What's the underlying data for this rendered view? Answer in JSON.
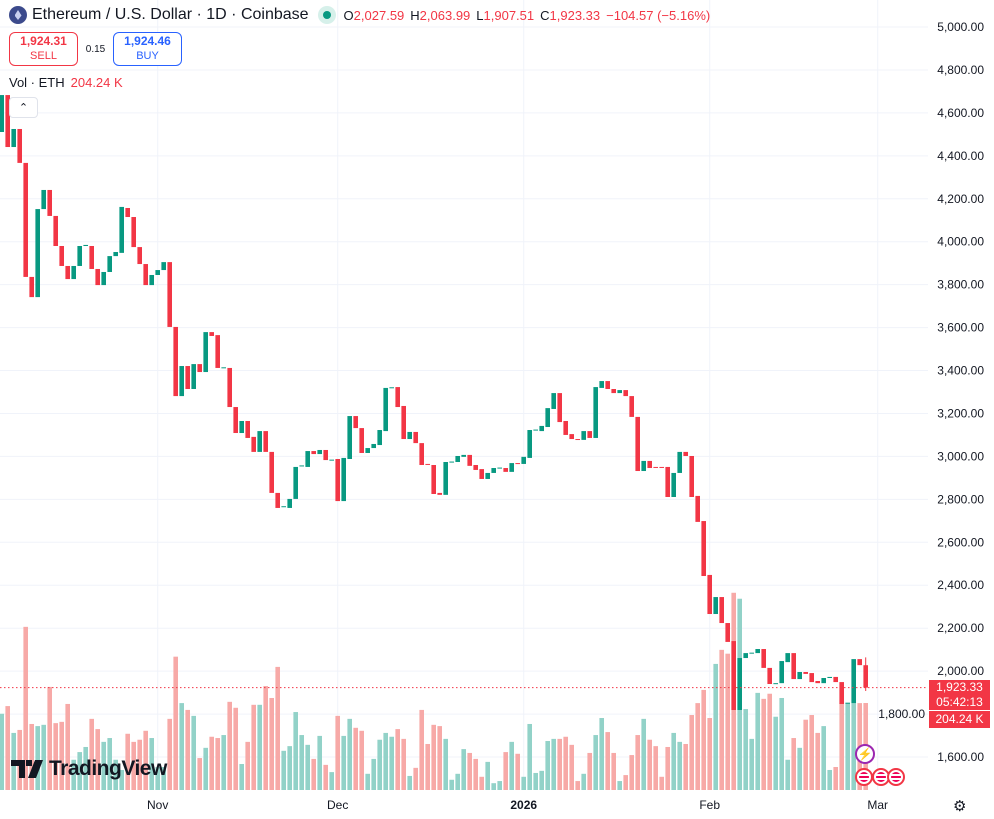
{
  "header": {
    "symbol": "Ethereum / U.S. Dollar · 1D · Coinbase",
    "o_label": "O",
    "o": "2,027.59",
    "h_label": "H",
    "h": "2,063.99",
    "l_label": "L",
    "l": "1,907.51",
    "c_label": "C",
    "c": "1,923.33",
    "change": "−104.57 (−5.16%)"
  },
  "trade": {
    "sell_price": "1,924.31",
    "sell_label": "SELL",
    "spread": "0.15",
    "buy_price": "1,924.46",
    "buy_label": "BUY"
  },
  "volume_legend": {
    "label": "Vol · ETH",
    "value": "204.24 K"
  },
  "labels": {
    "last_price": "1,923.33",
    "countdown": "05:42:13",
    "last_volume": "204.24 K",
    "logo": "TradingView"
  },
  "colors": {
    "up": "#089981",
    "down": "#f23645",
    "up_vol": "#92d2c8",
    "down_vol": "#f7a9a7"
  },
  "icons": [
    "ethereum-icon",
    "market-open-dot",
    "collapse-chevron-icon",
    "gear-icon",
    "lightning-icon",
    "us-flag-event-icon"
  ],
  "chart_data": {
    "type": "candlestick",
    "interval": "1D",
    "start_date": "2025-10-06",
    "ylim": [
      1500,
      5050
    ],
    "y_ticks": [
      1600,
      1800,
      2000,
      2200,
      2400,
      2600,
      2800,
      3000,
      3200,
      3400,
      3600,
      3800,
      4000,
      4200,
      4400,
      4600,
      4800,
      5000
    ],
    "y_tick_labels": [
      "1,600.00",
      "1,800.00",
      "2,000.00",
      "2,200.00",
      "2,400.00",
      "2,600.00",
      "2,800.00",
      "3,000.00",
      "3,200.00",
      "3,400.00",
      "3,600.00",
      "3,800.00",
      "4,000.00",
      "4,200.00",
      "4,400.00",
      "4,600.00",
      "4,800.00",
      "5,000.00"
    ],
    "x_labels": [
      {
        "date": "2025-11-01",
        "text": "Nov"
      },
      {
        "date": "2025-12-01",
        "text": "Dec"
      },
      {
        "date": "2026-01-01",
        "text": "2026",
        "bold": true
      },
      {
        "date": "2026-02-01",
        "text": "Feb"
      },
      {
        "date": "2026-03-01",
        "text": "Mar"
      }
    ],
    "last_candle": {
      "o": 2027.59,
      "h": 2063.99,
      "l": 1907.51,
      "c": 1923.33
    },
    "candles_oc": [
      [
        4511,
        4683
      ],
      [
        4683,
        4441
      ],
      [
        4441,
        4525
      ],
      [
        4525,
        4367
      ],
      [
        4367,
        3836
      ],
      [
        3836,
        3742
      ],
      [
        3742,
        4152
      ],
      [
        4152,
        4241
      ],
      [
        4241,
        4120
      ],
      [
        4120,
        3980
      ],
      [
        3980,
        3887
      ],
      [
        3887,
        3826
      ],
      [
        3826,
        3887
      ],
      [
        3887,
        3980
      ],
      [
        3980,
        3985
      ],
      [
        3980,
        3873
      ],
      [
        3873,
        3798
      ],
      [
        3798,
        3859
      ],
      [
        3859,
        3933
      ],
      [
        3933,
        3952
      ],
      [
        3948,
        4162
      ],
      [
        4157,
        4115
      ],
      [
        4115,
        3975
      ],
      [
        3975,
        3896
      ],
      [
        3896,
        3798
      ],
      [
        3798,
        3845
      ],
      [
        3845,
        3868
      ],
      [
        3868,
        3905
      ],
      [
        3905,
        3603
      ],
      [
        3603,
        3281
      ],
      [
        3281,
        3421
      ],
      [
        3421,
        3314
      ],
      [
        3314,
        3430
      ],
      [
        3430,
        3393
      ],
      [
        3393,
        3579
      ],
      [
        3579,
        3561
      ],
      [
        3565,
        3412
      ],
      [
        3412,
        3415
      ],
      [
        3412,
        3230
      ],
      [
        3230,
        3109
      ],
      [
        3109,
        3165
      ],
      [
        3165,
        3086
      ],
      [
        3091,
        3021
      ],
      [
        3021,
        3118
      ],
      [
        3118,
        3021
      ],
      [
        3021,
        2830
      ],
      [
        2830,
        2760
      ],
      [
        2764,
        2768
      ],
      [
        2760,
        2802
      ],
      [
        2802,
        2951
      ],
      [
        2956,
        2958
      ],
      [
        2951,
        3025
      ],
      [
        3025,
        3011
      ],
      [
        3011,
        3030
      ],
      [
        3030,
        2983
      ],
      [
        2983,
        2985
      ],
      [
        2988,
        2792
      ],
      [
        2792,
        2993
      ],
      [
        2988,
        3188
      ],
      [
        3188,
        3132
      ],
      [
        3132,
        3016
      ],
      [
        3016,
        3039
      ],
      [
        3039,
        3058
      ],
      [
        3053,
        3123
      ],
      [
        3118,
        3319
      ],
      [
        3319,
        3322
      ],
      [
        3323,
        3230
      ],
      [
        3235,
        3081
      ],
      [
        3081,
        3114
      ],
      [
        3114,
        3062
      ],
      [
        3062,
        2960
      ],
      [
        2965,
        2963
      ],
      [
        2960,
        2825
      ],
      [
        2830,
        2821
      ],
      [
        2821,
        2974
      ],
      [
        2974,
        2976
      ],
      [
        2974,
        3002
      ],
      [
        2998,
        3007
      ],
      [
        3007,
        2956
      ],
      [
        2960,
        2937
      ],
      [
        2941,
        2895
      ],
      [
        2895,
        2923
      ],
      [
        2923,
        2946
      ],
      [
        2946,
        2948
      ],
      [
        2946,
        2928
      ],
      [
        2928,
        2969
      ],
      [
        2969,
        2967
      ],
      [
        2965,
        2998
      ],
      [
        2993,
        3123
      ],
      [
        3123,
        3125
      ],
      [
        3118,
        3142
      ],
      [
        3137,
        3225
      ],
      [
        3221,
        3295
      ],
      [
        3295,
        3160
      ],
      [
        3165,
        3100
      ],
      [
        3104,
        3081
      ],
      [
        3081,
        3079
      ],
      [
        3077,
        3118
      ],
      [
        3118,
        3086
      ],
      [
        3086,
        3323
      ],
      [
        3319,
        3351
      ],
      [
        3351,
        3314
      ],
      [
        3314,
        3295
      ],
      [
        3295,
        3309
      ],
      [
        3309,
        3281
      ],
      [
        3281,
        3184
      ],
      [
        3184,
        2932
      ],
      [
        2932,
        2979
      ],
      [
        2979,
        2946
      ],
      [
        2951,
        2950
      ],
      [
        2951,
        2948
      ],
      [
        2951,
        2811
      ],
      [
        2811,
        2923
      ],
      [
        2923,
        3021
      ],
      [
        3021,
        3002
      ],
      [
        3002,
        2811
      ],
      [
        2816,
        2695
      ],
      [
        2699,
        2443
      ],
      [
        2448,
        2266
      ],
      [
        2266,
        2345
      ],
      [
        2345,
        2224
      ],
      [
        2224,
        2136
      ],
      [
        2140,
        1819
      ],
      [
        1819,
        2061
      ],
      [
        2061,
        2084
      ],
      [
        2084,
        2086
      ],
      [
        2084,
        2103
      ],
      [
        2103,
        2015
      ],
      [
        2015,
        1940
      ],
      [
        1940,
        1944
      ],
      [
        1944,
        2047
      ],
      [
        2042,
        2084
      ],
      [
        2084,
        1963
      ],
      [
        1963,
        1996
      ],
      [
        1996,
        1987
      ],
      [
        1991,
        1949
      ],
      [
        1954,
        1944
      ],
      [
        1944,
        1968
      ],
      [
        1968,
        1973
      ],
      [
        1973,
        1949
      ],
      [
        1949,
        1847
      ],
      [
        1851,
        1853
      ],
      [
        1851,
        2056
      ],
      [
        2056,
        2027.9
      ],
      [
        2027.59,
        1923.33
      ]
    ],
    "volume_k": [
      179,
      197,
      134,
      141,
      383,
      155,
      150,
      153,
      242,
      157,
      160,
      202,
      71,
      89,
      101,
      167,
      143,
      113,
      122,
      71,
      47,
      132,
      113,
      118,
      139,
      122,
      54,
      54,
      167,
      313,
      204,
      188,
      174,
      75,
      99,
      125,
      122,
      129,
      207,
      193,
      61,
      113,
      200,
      200,
      244,
      216,
      289,
      92,
      103,
      183,
      129,
      106,
      73,
      127,
      59,
      42,
      174,
      127,
      167,
      146,
      139,
      38,
      73,
      118,
      134,
      125,
      143,
      120,
      33,
      52,
      188,
      108,
      153,
      150,
      120,
      24,
      38,
      96,
      87,
      73,
      31,
      66,
      16,
      21,
      89,
      113,
      85,
      31,
      155,
      40,
      45,
      115,
      120,
      120,
      125,
      106,
      21,
      38,
      87,
      129,
      169,
      136,
      87,
      21,
      35,
      82,
      129,
      167,
      118,
      103,
      31,
      101,
      134,
      113,
      108,
      176,
      204,
      235,
      169,
      296,
      329,
      320,
      463,
      449,
      190,
      120,
      228,
      214,
      226,
      172,
      216,
      71,
      122,
      99,
      165,
      176,
      134,
      150,
      47,
      54,
      204,
      204,
      204,
      204,
      204.24
    ],
    "volume_max_k": 470
  }
}
